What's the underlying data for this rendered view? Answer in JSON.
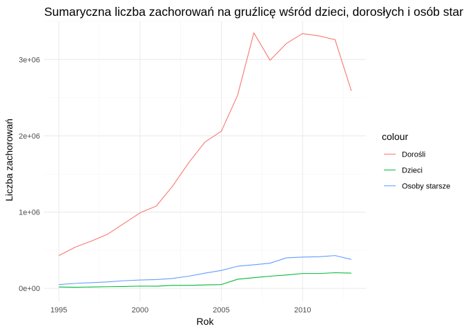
{
  "chart_data": {
    "type": "line",
    "title": "Sumaryczna liczba zachorowań na gruźlicę wśród dzieci, dorosłych i osób star",
    "xlabel": "Rok",
    "ylabel": "Liczba zachorowań",
    "xlim": [
      1994.1,
      2013.9
    ],
    "ylim": [
      -170000,
      3500000
    ],
    "x_ticks": [
      1995,
      2000,
      2005,
      2010
    ],
    "x_tick_labels": [
      "1995",
      "2000",
      "2005",
      "2010"
    ],
    "y_ticks": [
      0,
      1000000,
      2000000,
      3000000
    ],
    "y_tick_labels": [
      "0e+00",
      "1e+06",
      "2e+06",
      "3e+06"
    ],
    "grid": true,
    "legend": {
      "title": "colour",
      "position": "right",
      "entries": [
        "Dorośli",
        "Dzieci",
        "Osoby starsze"
      ]
    },
    "x": [
      1995,
      1996,
      1997,
      1998,
      1999,
      2000,
      2001,
      2002,
      2003,
      2004,
      2005,
      2006,
      2007,
      2008,
      2009,
      2010,
      2011,
      2012,
      2013
    ],
    "series": [
      {
        "name": "Dorośli",
        "color": "#F8766D",
        "values": [
          430000,
          540000,
          620000,
          710000,
          850000,
          990000,
          1080000,
          1340000,
          1650000,
          1920000,
          2060000,
          2530000,
          3350000,
          2990000,
          3210000,
          3340000,
          3310000,
          3260000,
          2590000
        ]
      },
      {
        "name": "Dzieci",
        "color": "#00BA38",
        "values": [
          18000,
          15000,
          18000,
          22000,
          25000,
          30000,
          28000,
          40000,
          40000,
          45000,
          50000,
          120000,
          140000,
          160000,
          175000,
          195000,
          195000,
          205000,
          200000
        ]
      },
      {
        "name": "Osoby starsze",
        "color": "#619CFF",
        "values": [
          50000,
          65000,
          75000,
          85000,
          100000,
          110000,
          115000,
          130000,
          160000,
          200000,
          235000,
          290000,
          310000,
          330000,
          400000,
          410000,
          415000,
          430000,
          380000
        ]
      }
    ]
  }
}
